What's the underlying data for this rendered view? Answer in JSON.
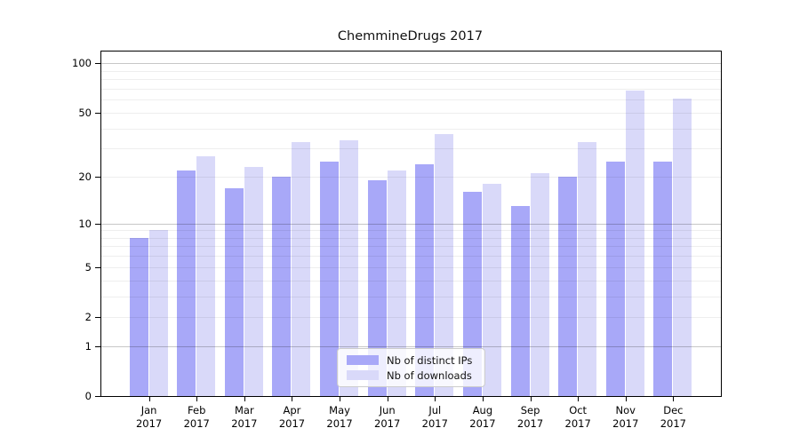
{
  "chart_data": {
    "type": "bar",
    "title": "ChemmineDrugs 2017",
    "categories": [
      "Jan",
      "Feb",
      "Mar",
      "Apr",
      "May",
      "Jun",
      "Jul",
      "Aug",
      "Sep",
      "Oct",
      "Nov",
      "Dec"
    ],
    "category_year": "2017",
    "series": [
      {
        "name": "Nb of distinct IPs",
        "color": "#a8a8f8",
        "values": [
          8,
          22,
          17,
          20,
          25,
          19,
          24,
          16,
          13,
          20,
          25,
          25
        ]
      },
      {
        "name": "Nb of downloads",
        "color": "#d9d9f9",
        "values": [
          9,
          27,
          23,
          33,
          34,
          22,
          37,
          18,
          21,
          33,
          68,
          61
        ]
      }
    ],
    "yscale": "log1p",
    "ylim": [
      0,
      117
    ],
    "ytick_labels": [
      "100",
      "50",
      "20",
      "10",
      "5",
      "2",
      "1",
      "0"
    ],
    "ytick_values": [
      100,
      50,
      20,
      10,
      5,
      2,
      1,
      0
    ],
    "grid_major": [
      1,
      10,
      100
    ],
    "grid_minor": [
      2,
      3,
      4,
      5,
      6,
      7,
      8,
      9,
      20,
      30,
      40,
      50,
      60,
      70,
      80,
      90
    ],
    "grid": "on",
    "legend_position": "lower center",
    "colors": {
      "distinct_ips": "#a8a8f8",
      "downloads": "#d9d9f9",
      "grid_major": "#c6c6c6",
      "grid_minor": "#ededed",
      "axis": "#000000"
    }
  }
}
